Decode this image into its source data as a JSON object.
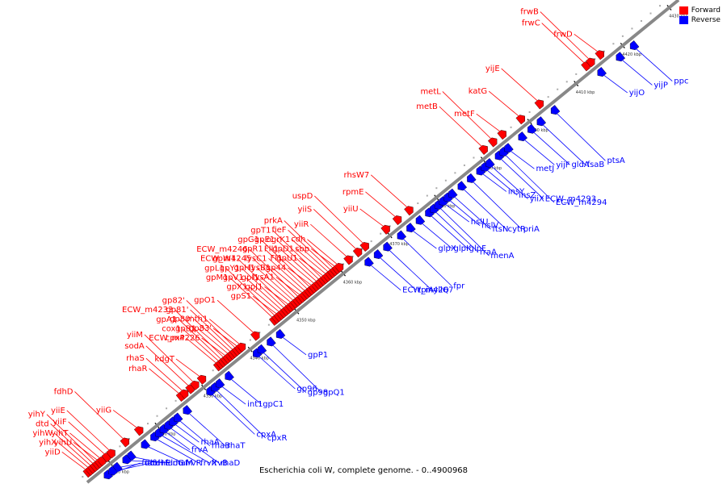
{
  "caption": "Escherichia coli W, complete genome. - 0..4900968",
  "legend": [
    {
      "label": "Forward",
      "color": "#ff0000"
    },
    {
      "label": "Reverse",
      "color": "#0000ff"
    }
  ],
  "colors": {
    "forward": "#ff0000",
    "reverse": "#0000ff",
    "backbone": "#888888"
  },
  "axis": {
    "start_kbp": 4305,
    "end_kbp": 4432,
    "ticks": [
      {
        "kbp": 4310,
        "label": "4310 kbp"
      },
      {
        "kbp": 4320,
        "label": "4320 kbp"
      },
      {
        "kbp": 4330,
        "label": "4330 kbp"
      },
      {
        "kbp": 4340,
        "label": "4340 kbp"
      },
      {
        "kbp": 4350,
        "label": "4350 kbp"
      },
      {
        "kbp": 4360,
        "label": "4360 kbp"
      },
      {
        "kbp": 4370,
        "label": "4370 kbp"
      },
      {
        "kbp": 4380,
        "label": "4380 kbp"
      },
      {
        "kbp": 4390,
        "label": "4390 kbp"
      },
      {
        "kbp": 4400,
        "label": "4400 kbp"
      },
      {
        "kbp": 4410,
        "label": "4410 kbp"
      },
      {
        "kbp": 4420,
        "label": "4420 kbp"
      },
      {
        "kbp": 4430,
        "label": "4430 kbp"
      }
    ]
  },
  "forward_labels": [
    {
      "name": "yiiD",
      "kbp": 4306
    },
    {
      "name": "yihX",
      "kbp": 4306.5
    },
    {
      "name": "yihW",
      "kbp": 4307
    },
    {
      "name": "dtd",
      "kbp": 4307.5
    },
    {
      "name": "yihY",
      "kbp": 4308
    },
    {
      "name": "yihU",
      "kbp": 4308.5
    },
    {
      "name": "yihT",
      "kbp": 4309
    },
    {
      "name": "yiiF",
      "kbp": 4310
    },
    {
      "name": "yiiE",
      "kbp": 4311
    },
    {
      "name": "fdhD",
      "kbp": 4314
    },
    {
      "name": "yiiG",
      "kbp": 4317
    },
    {
      "name": "rhaR",
      "kbp": 4326
    },
    {
      "name": "rhaS",
      "kbp": 4326.7
    },
    {
      "name": "sodA",
      "kbp": 4328
    },
    {
      "name": "yiiM",
      "kbp": 4329
    },
    {
      "name": "kdgT",
      "kbp": 4330.5
    },
    {
      "name": "cpxP",
      "kbp": 4334
    },
    {
      "name": "cox1",
      "kbp": 4334.5
    },
    {
      "name": "gpA1",
      "kbp": 4335
    },
    {
      "name": "ECW_m4233",
      "kbp": 4335.5
    },
    {
      "name": "ECW_m4226",
      "kbp": 4336
    },
    {
      "name": "gpB1",
      "kbp": 4336.5
    },
    {
      "name": "gp80'",
      "kbp": 4337
    },
    {
      "name": "gp81'",
      "kbp": 4337.5
    },
    {
      "name": "gp82'",
      "kbp": 4338
    },
    {
      "name": "gp83'",
      "kbp": 4338.5
    },
    {
      "name": "mth1",
      "kbp": 4339
    },
    {
      "name": "gpO1",
      "kbp": 4342
    },
    {
      "name": "gpM1",
      "kbp": 4346
    },
    {
      "name": "gpL1",
      "kbp": 4346.5
    },
    {
      "name": "gpS1",
      "kbp": 4347
    },
    {
      "name": "gpX1",
      "kbp": 4347.5
    },
    {
      "name": "gpV1",
      "kbp": 4348
    },
    {
      "name": "gpY1",
      "kbp": 4348.5
    },
    {
      "name": "gpW1",
      "kbp": 4349
    },
    {
      "name": "gpJ1",
      "kbp": 4349.5
    },
    {
      "name": "gpI1",
      "kbp": 4350
    },
    {
      "name": "gpH1",
      "kbp": 4350.5
    },
    {
      "name": "ECW_m4245",
      "kbp": 4351
    },
    {
      "name": "ECW_m4246",
      "kbp": 4351.5
    },
    {
      "name": "lysA1",
      "kbp": 4352
    },
    {
      "name": "lysB1",
      "kbp": 4352.5
    },
    {
      "name": "lysC1",
      "kbp": 4353
    },
    {
      "name": "gpR1",
      "kbp": 4353.5
    },
    {
      "name": "gpG1",
      "kbp": 4354
    },
    {
      "name": "gp44",
      "kbp": 4354.5
    },
    {
      "name": "FI1",
      "kbp": 4355
    },
    {
      "name": "FII1",
      "kbp": 4355.5
    },
    {
      "name": "gpE1",
      "kbp": 4356
    },
    {
      "name": "gpT1",
      "kbp": 4356.5
    },
    {
      "name": "gpU1",
      "kbp": 4357
    },
    {
      "name": "gpD1",
      "kbp": 4357.5
    },
    {
      "name": "ogrK1",
      "kbp": 4358
    },
    {
      "name": "fieF",
      "kbp": 4358.5
    },
    {
      "name": "prkA",
      "kbp": 4359
    },
    {
      "name": "sbp",
      "kbp": 4359.5
    },
    {
      "name": "cdh",
      "kbp": 4360
    },
    {
      "name": "yiiR",
      "kbp": 4362
    },
    {
      "name": "yiiS",
      "kbp": 4364
    },
    {
      "name": "uspD",
      "kbp": 4365.5
    },
    {
      "name": "yiiU",
      "kbp": 4370
    },
    {
      "name": "rpmE",
      "kbp": 4372.5
    },
    {
      "name": "rhsW7",
      "kbp": 4375
    },
    {
      "name": "metB",
      "kbp": 4391
    },
    {
      "name": "metL",
      "kbp": 4393
    },
    {
      "name": "metF",
      "kbp": 4395
    },
    {
      "name": "katG",
      "kbp": 4399
    },
    {
      "name": "yijE",
      "kbp": 4403
    },
    {
      "name": "frwC",
      "kbp": 4413
    },
    {
      "name": "frwB",
      "kbp": 4414
    },
    {
      "name": "frwD",
      "kbp": 4416
    }
  ],
  "reverse_labels": [
    {
      "name": "fdoH",
      "kbp": 4310
    },
    {
      "name": "fdoG",
      "kbp": 4313
    },
    {
      "name": "frvR",
      "kbp": 4316
    },
    {
      "name": "frvX",
      "kbp": 4318
    },
    {
      "name": "frvB",
      "kbp": 4319
    },
    {
      "name": "frvA",
      "kbp": 4320
    },
    {
      "name": "fdoI",
      "kbp": 4308
    },
    {
      "name": "fdhE",
      "kbp": 4309
    },
    {
      "name": "rhaM",
      "kbp": 4312
    },
    {
      "name": "rhaD",
      "kbp": 4321
    },
    {
      "name": "rhaA",
      "kbp": 4322
    },
    {
      "name": "rhaB",
      "kbp": 4323
    },
    {
      "name": "rhaT",
      "kbp": 4325
    },
    {
      "name": "cpxA",
      "kbp": 4330
    },
    {
      "name": "cpxR",
      "kbp": 4331
    },
    {
      "name": "int1",
      "kbp": 4332
    },
    {
      "name": "gpC1",
      "kbp": 4334
    },
    {
      "name": "gp96",
      "kbp": 4340
    },
    {
      "name": "gp98",
      "kbp": 4341
    },
    {
      "name": "gpQ1",
      "kbp": 4343
    },
    {
      "name": "gpP1",
      "kbp": 4345
    },
    {
      "name": "ECW_m4267",
      "kbp": 4364
    },
    {
      "name": "tpiA",
      "kbp": 4366
    },
    {
      "name": "yiiQ",
      "kbp": 4368
    },
    {
      "name": "fpr",
      "kbp": 4371
    },
    {
      "name": "glpX",
      "kbp": 4373
    },
    {
      "name": "glpK",
      "kbp": 4375
    },
    {
      "name": "glpF",
      "kbp": 4377
    },
    {
      "name": "rraA",
      "kbp": 4378
    },
    {
      "name": "menA",
      "kbp": 4379
    },
    {
      "name": "hslU",
      "kbp": 4380
    },
    {
      "name": "hslV",
      "kbp": 4381
    },
    {
      "name": "ftsN",
      "kbp": 4382
    },
    {
      "name": "cytR",
      "kbp": 4384
    },
    {
      "name": "priA",
      "kbp": 4386
    },
    {
      "name": "insY",
      "kbp": 4388
    },
    {
      "name": "insZ",
      "kbp": 4389
    },
    {
      "name": "yiiX",
      "kbp": 4390
    },
    {
      "name": "ECW_m4293",
      "kbp": 4392
    },
    {
      "name": "ECW_m4294",
      "kbp": 4393
    },
    {
      "name": "metJ",
      "kbp": 4394
    },
    {
      "name": "yijF",
      "kbp": 4397
    },
    {
      "name": "gldA",
      "kbp": 4399
    },
    {
      "name": "fsaB",
      "kbp": 4401
    },
    {
      "name": "ptsA",
      "kbp": 4404
    },
    {
      "name": "yijO",
      "kbp": 4414
    },
    {
      "name": "yijP",
      "kbp": 4418
    },
    {
      "name": "ppc",
      "kbp": 4421
    }
  ]
}
